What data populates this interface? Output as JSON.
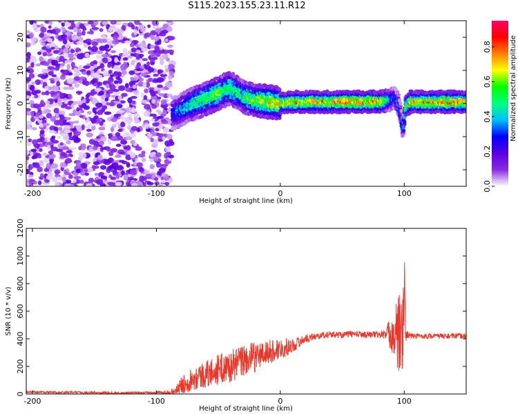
{
  "title": "S115.2023.155.23.11.R12",
  "colors": {
    "signal": "#e8382c",
    "axis": "#000000",
    "background": "#ffffff"
  },
  "colorbar": {
    "label": "Normalized spectral amplitude",
    "ticks": [
      "0.0",
      "0.2",
      "0.4",
      "0.6",
      "0.8"
    ],
    "tick_values": [
      0.0,
      0.2,
      0.4,
      0.6,
      0.8
    ],
    "range": [
      0.0,
      0.95
    ],
    "stops": [
      "#ffffff",
      "#8a2be2",
      "#5a00e0",
      "#0000ff",
      "#00bfff",
      "#00ff80",
      "#00ff00",
      "#ffff00",
      "#ff8000",
      "#ff0000",
      "#ff0066"
    ]
  },
  "chart_data": [
    {
      "type": "heatmap",
      "xlabel": "Height of straight line (km)",
      "ylabel": "Frequency (Hz)",
      "xlim": [
        -205,
        150
      ],
      "ylim": [
        -25,
        25
      ],
      "xticks": [
        -200,
        -100,
        0,
        100
      ],
      "xtick_labels": [
        "-200",
        "-100",
        "0",
        "100"
      ],
      "yticks": [
        -20,
        -10,
        0,
        10,
        20
      ],
      "ytick_labels": [
        "-20",
        "-10",
        "0",
        "10",
        "20"
      ],
      "noise_region_x": [
        -205,
        -87
      ],
      "signal_track": {
        "x": [
          -87,
          -80,
          -70,
          -60,
          -50,
          -45,
          -40,
          -35,
          -30,
          -25,
          -20,
          -15,
          -10,
          -5,
          0,
          5,
          10,
          20,
          40,
          60,
          80,
          88,
          92,
          95,
          97,
          99,
          101,
          105,
          120,
          150
        ],
        "frequency": [
          -3,
          -2,
          0,
          1.5,
          3,
          4,
          4.5,
          3.5,
          2,
          1.5,
          1,
          0.8,
          0.5,
          0.3,
          0,
          0.3,
          0.5,
          0.5,
          0.5,
          0.5,
          0.5,
          1,
          2,
          0,
          -3,
          -8,
          -1,
          0.5,
          0.5,
          0.5
        ],
        "amplitude": [
          0.3,
          0.4,
          0.5,
          0.6,
          0.65,
          0.55,
          0.6,
          0.55,
          0.5,
          0.6,
          0.65,
          0.7,
          0.7,
          0.72,
          0.72,
          0.72,
          0.75,
          0.78,
          0.8,
          0.82,
          0.82,
          0.5,
          0.3,
          0.4,
          0.3,
          0.35,
          0.6,
          0.78,
          0.8,
          0.8
        ]
      }
    },
    {
      "type": "line",
      "xlabel": "Height of straight line (km)",
      "ylabel": "SNR (10 * v/v)",
      "xlim": [
        -205,
        150
      ],
      "ylim": [
        0,
        1200
      ],
      "xticks": [
        -200,
        -100,
        0,
        100
      ],
      "xtick_labels": [
        "-200",
        "-100",
        "0",
        "100"
      ],
      "yticks": [
        0,
        200,
        400,
        600,
        800,
        1000,
        1200
      ],
      "ytick_labels": [
        "0",
        "200",
        "400",
        "600",
        "800",
        "1000",
        "1200"
      ],
      "series": [
        {
          "color": "#e8382c",
          "x": [
            -205,
            -180,
            -150,
            -120,
            -100,
            -90,
            -85,
            -80,
            -75,
            -70,
            -60,
            -50,
            -40,
            -30,
            -20,
            -10,
            0,
            10,
            20,
            30,
            40,
            50,
            60,
            70,
            80,
            85,
            90,
            95,
            97,
            99,
            100,
            101,
            103,
            105,
            110,
            120,
            130,
            140,
            150
          ],
          "y": [
            15,
            12,
            10,
            8,
            10,
            12,
            20,
            60,
            90,
            120,
            140,
            180,
            200,
            240,
            270,
            300,
            330,
            350,
            400,
            420,
            430,
            430,
            435,
            430,
            430,
            430,
            450,
            400,
            450,
            350,
            600,
            420,
            430,
            420,
            420,
            420,
            420,
            420,
            420
          ],
          "spread": [
            8,
            8,
            8,
            8,
            10,
            15,
            30,
            60,
            80,
            90,
            100,
            110,
            120,
            120,
            110,
            90,
            80,
            50,
            30,
            25,
            25,
            25,
            25,
            25,
            25,
            40,
            150,
            300,
            350,
            350,
            600,
            60,
            25,
            20,
            20,
            20,
            20,
            20,
            20
          ]
        }
      ]
    }
  ]
}
